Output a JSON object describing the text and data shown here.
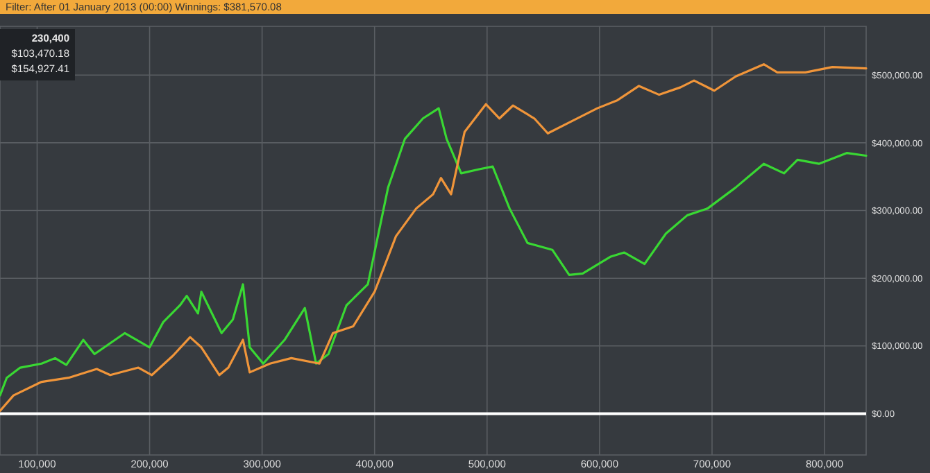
{
  "chart_data": {
    "type": "line",
    "title": "Filter: After 01 January 2013 (00:00) Winnings: $381,570.08",
    "annotations": [
      "230,400",
      "$103,470.18",
      "$154,927.41"
    ],
    "xlim": [
      67000,
      837000
    ],
    "xticks": [
      {
        "value": 100000,
        "label": "100,000"
      },
      {
        "value": 200000,
        "label": "200,000"
      },
      {
        "value": 300000,
        "label": "300,000"
      },
      {
        "value": 400000,
        "label": "400,000"
      },
      {
        "value": 500000,
        "label": "500,000"
      },
      {
        "value": 600000,
        "label": "600,000"
      },
      {
        "value": 700000,
        "label": "700,000"
      },
      {
        "value": 800000,
        "label": "800,000"
      }
    ],
    "ylim": [
      -61000,
      572000
    ],
    "yticks": [
      {
        "value": 0,
        "label": "$0.00"
      },
      {
        "value": 100000,
        "label": "$100,000.00"
      },
      {
        "value": 200000,
        "label": "$200,000.00"
      },
      {
        "value": 300000,
        "label": "$300,000.00"
      },
      {
        "value": 400000,
        "label": "$400,000.00"
      },
      {
        "value": 500000,
        "label": "$500,000.00"
      }
    ],
    "grid": true,
    "ref_lines": [
      {
        "axis": "y",
        "value": 0,
        "color": "#ffffff"
      }
    ],
    "series": [
      {
        "color": "#39d833",
        "x": [
          67000,
          73000,
          85000,
          104000,
          116000,
          126000,
          141000,
          151000,
          178000,
          200000,
          212000,
          227000,
          233000,
          243000,
          246000,
          264000,
          274000,
          283000,
          289000,
          301000,
          320000,
          338000,
          348000,
          359000,
          375000,
          394000,
          412000,
          427000,
          443000,
          457000,
          464000,
          477000,
          493000,
          505000,
          520000,
          536000,
          558000,
          573000,
          585000,
          610000,
          622000,
          640000,
          659000,
          678000,
          696000,
          721000,
          746000,
          764000,
          776000,
          795000,
          820000,
          837000
        ],
        "values": [
          27000,
          53000,
          68000,
          74000,
          82000,
          72000,
          109000,
          88000,
          119000,
          98000,
          135000,
          160000,
          174000,
          148000,
          180000,
          119000,
          139000,
          191000,
          98000,
          74000,
          109000,
          156000,
          74000,
          88000,
          160000,
          191000,
          334000,
          406000,
          436000,
          451000,
          406000,
          355000,
          361000,
          365000,
          303000,
          252000,
          242000,
          205000,
          207000,
          232000,
          238000,
          221000,
          266000,
          293000,
          303000,
          334000,
          369000,
          355000,
          375000,
          369000,
          385000,
          381000
        ]
      },
      {
        "color": "#f0953a",
        "x": [
          67000,
          79000,
          104000,
          128000,
          153000,
          165000,
          190000,
          202000,
          221000,
          236000,
          246000,
          262000,
          270000,
          283000,
          289000,
          307000,
          326000,
          351000,
          363000,
          381000,
          400000,
          419000,
          437000,
          452000,
          459000,
          468000,
          480000,
          499000,
          511000,
          523000,
          542000,
          554000,
          573000,
          598000,
          616000,
          635000,
          653000,
          672000,
          684000,
          702000,
          721000,
          746000,
          758000,
          783000,
          807000,
          837000
        ],
        "values": [
          4000,
          27000,
          47000,
          53000,
          66000,
          57000,
          68000,
          57000,
          86000,
          113000,
          98000,
          57000,
          68000,
          109000,
          61000,
          74000,
          82000,
          74000,
          119000,
          129000,
          180000,
          262000,
          303000,
          324000,
          348000,
          324000,
          416000,
          457000,
          436000,
          455000,
          436000,
          414000,
          430000,
          451000,
          463000,
          484000,
          471000,
          482000,
          492000,
          477000,
          498000,
          516000,
          504000,
          504000,
          512000,
          510000
        ]
      }
    ]
  }
}
